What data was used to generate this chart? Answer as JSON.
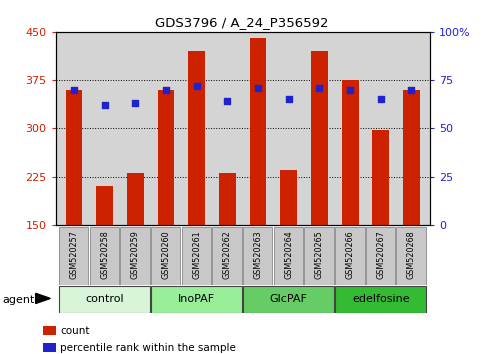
{
  "title": "GDS3796 / A_24_P356592",
  "samples": [
    "GSM520257",
    "GSM520258",
    "GSM520259",
    "GSM520260",
    "GSM520261",
    "GSM520262",
    "GSM520263",
    "GSM520264",
    "GSM520265",
    "GSM520266",
    "GSM520267",
    "GSM520268"
  ],
  "counts": [
    360,
    210,
    230,
    360,
    420,
    230,
    440,
    235,
    420,
    375,
    298,
    360
  ],
  "percentiles": [
    70,
    62,
    63,
    70,
    72,
    64,
    71,
    65,
    71,
    70,
    65,
    70
  ],
  "ylim_left": [
    150,
    450
  ],
  "ylim_right": [
    0,
    100
  ],
  "yticks_left": [
    150,
    225,
    300,
    375,
    450
  ],
  "yticks_right": [
    0,
    25,
    50,
    75,
    100
  ],
  "yticklabels_right": [
    "0",
    "25",
    "50",
    "75",
    "100%"
  ],
  "groups": [
    {
      "label": "control",
      "start": 0,
      "end": 3,
      "color": "#d9f5d9"
    },
    {
      "label": "InoPAF",
      "start": 3,
      "end": 6,
      "color": "#99ee99"
    },
    {
      "label": "GlcPAF",
      "start": 6,
      "end": 9,
      "color": "#66cc66"
    },
    {
      "label": "edelfosine",
      "start": 9,
      "end": 12,
      "color": "#33bb33"
    }
  ],
  "bar_color": "#cc2200",
  "dot_color": "#2222cc",
  "bar_width": 0.55,
  "plot_bg": "#d4d4d4",
  "tick_color_left": "#cc2200",
  "tick_color_right": "#2222cc",
  "sample_box_color": "#c8c8c8",
  "legend_items": [
    {
      "label": "count",
      "color": "#cc2200"
    },
    {
      "label": "percentile rank within the sample",
      "color": "#2222cc"
    }
  ],
  "agent_label": "agent"
}
